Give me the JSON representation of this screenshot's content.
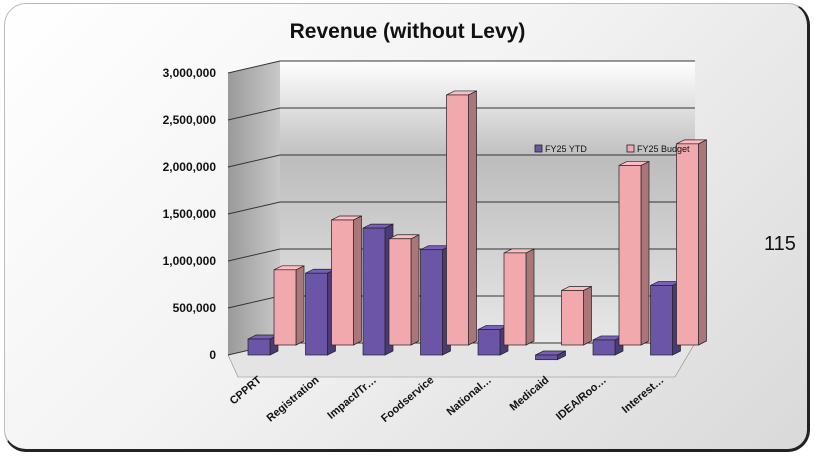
{
  "slide": {
    "page_number": "115"
  },
  "chart_data": {
    "type": "bar",
    "title": "Revenue (without Levy)",
    "categories": [
      "CPPRT",
      "Registration",
      "Impact/Tr…",
      "Foodservice",
      "National…",
      "Medicaid",
      "IDEA/Roo…",
      "Interest…"
    ],
    "series": [
      {
        "name": "FY25 YTD",
        "color": "#6b55a6",
        "values": [
          170000,
          870000,
          1350000,
          1120000,
          270000,
          -50000,
          160000,
          740000
        ]
      },
      {
        "name": "FY25 Budget",
        "color": "#f2a9ad",
        "values": [
          800000,
          1330000,
          1130000,
          2660000,
          980000,
          580000,
          1910000,
          2140000
        ]
      }
    ],
    "ylim": [
      0,
      3000000
    ],
    "yticks": [
      "0",
      "500,000",
      "1,000,000",
      "1,500,000",
      "2,000,000",
      "2,500,000",
      "3,000,000"
    ],
    "xlabel": "",
    "ylabel": "",
    "grid": true,
    "legend": "upper-right inside plot",
    "style": "3d-clustered-column"
  }
}
